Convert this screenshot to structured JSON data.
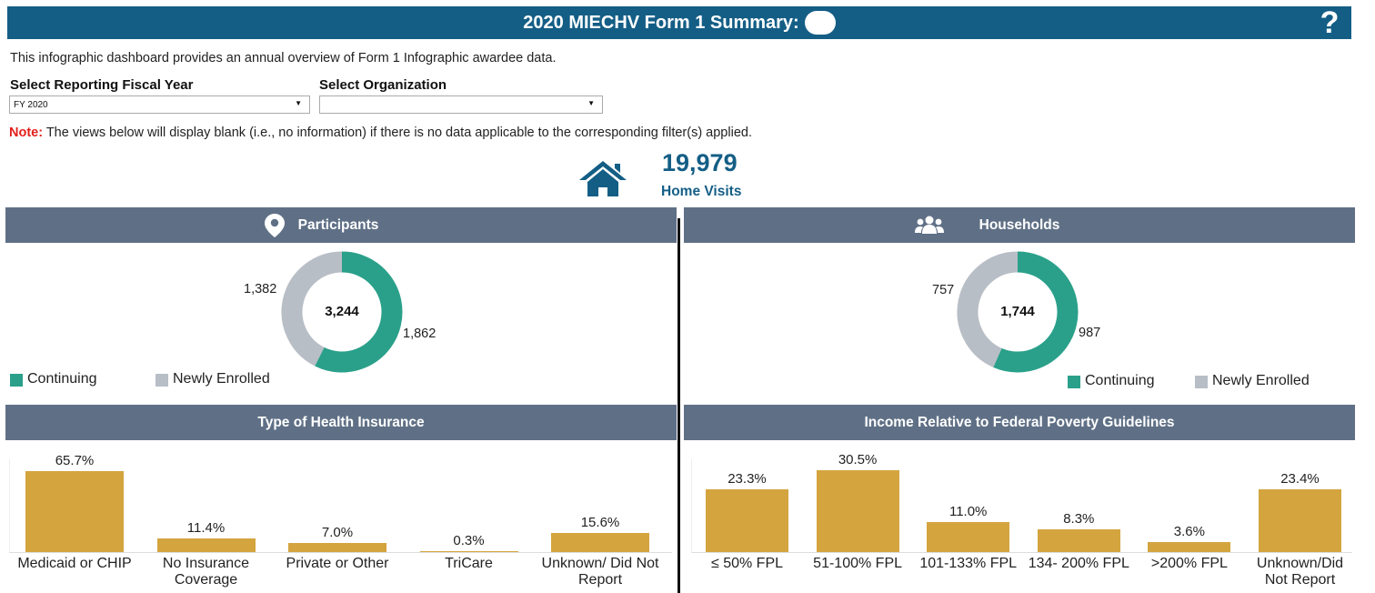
{
  "header": {
    "title": "2020 MIECHV Form 1 Summary:",
    "help_icon": "?"
  },
  "intro": "This infographic dashboard provides an annual overview of Form 1 Infographic awardee data.",
  "filters": {
    "fiscal_year": {
      "label": "Select Reporting Fiscal Year",
      "value": "FY 2020"
    },
    "organization": {
      "label": "Select Organization",
      "value": ""
    }
  },
  "note": {
    "lead": "Note:",
    "text": " The views below will display blank (i.e., no information) if there is no data applicable to the corresponding filter(s) applied."
  },
  "kpi": {
    "value": "19,979",
    "label": "Home Visits",
    "icon": "house-icon"
  },
  "colors": {
    "continuing": "#2aa08a",
    "newly_enrolled": "#b8bec6",
    "bar": "#d4a43f",
    "header": "#145e86",
    "panel": "#5f7086"
  },
  "participants": {
    "title": "Participants",
    "icon": "map-pin-icon",
    "total": "3,244",
    "continuing_label": "1,862",
    "newly_label": "1,382",
    "legend": [
      "Continuing",
      "Newly Enrolled"
    ]
  },
  "households": {
    "title": "Households",
    "icon": "people-icon",
    "total": "1,744",
    "continuing_label": "987",
    "newly_label": "757",
    "legend": [
      "Continuing",
      "Newly Enrolled"
    ]
  },
  "chart_data": [
    {
      "type": "pie",
      "title": "Participants",
      "center_label": "3,244",
      "categories": [
        "Continuing",
        "Newly Enrolled"
      ],
      "values": [
        1862,
        1382
      ]
    },
    {
      "type": "pie",
      "title": "Households",
      "center_label": "1,744",
      "categories": [
        "Continuing",
        "Newly Enrolled"
      ],
      "values": [
        987,
        757
      ]
    },
    {
      "type": "bar",
      "title": "Type of Health Insurance",
      "categories": [
        "Medicaid or CHIP",
        "No Insurance Coverage",
        "Private or Other",
        "TriCare",
        "Unknown/ Did Not Report"
      ],
      "category_lines": [
        [
          "Medicaid or CHIP"
        ],
        [
          "No Insurance",
          "Coverage"
        ],
        [
          "Private or Other"
        ],
        [
          "TriCare"
        ],
        [
          "Unknown/ Did Not",
          "Report"
        ]
      ],
      "values": [
        65.7,
        11.4,
        7.0,
        0.3,
        15.6
      ],
      "labels": [
        "65.7%",
        "11.4%",
        "7.0%",
        "0.3%",
        "15.6%"
      ],
      "ylim": [
        0,
        75
      ]
    },
    {
      "type": "bar",
      "title": "Income Relative to Federal Poverty Guidelines",
      "categories": [
        "≤ 50% FPL",
        "51-100% FPL",
        "101-133% FPL",
        "134- 200% FPL",
        ">200% FPL",
        "Unknown/Did Not Report"
      ],
      "category_lines": [
        [
          "≤ 50% FPL"
        ],
        [
          "51-100% FPL"
        ],
        [
          "101-133% FPL"
        ],
        [
          "134- 200% FPL"
        ],
        [
          ">200% FPL"
        ],
        [
          "Unknown/Did",
          "Not Report"
        ]
      ],
      "values": [
        23.3,
        30.5,
        11.0,
        8.3,
        3.6,
        23.4
      ],
      "labels": [
        "23.3%",
        "30.5%",
        "11.0%",
        "8.3%",
        "3.6%",
        "23.4%"
      ],
      "ylim": [
        0,
        34.5
      ]
    }
  ]
}
